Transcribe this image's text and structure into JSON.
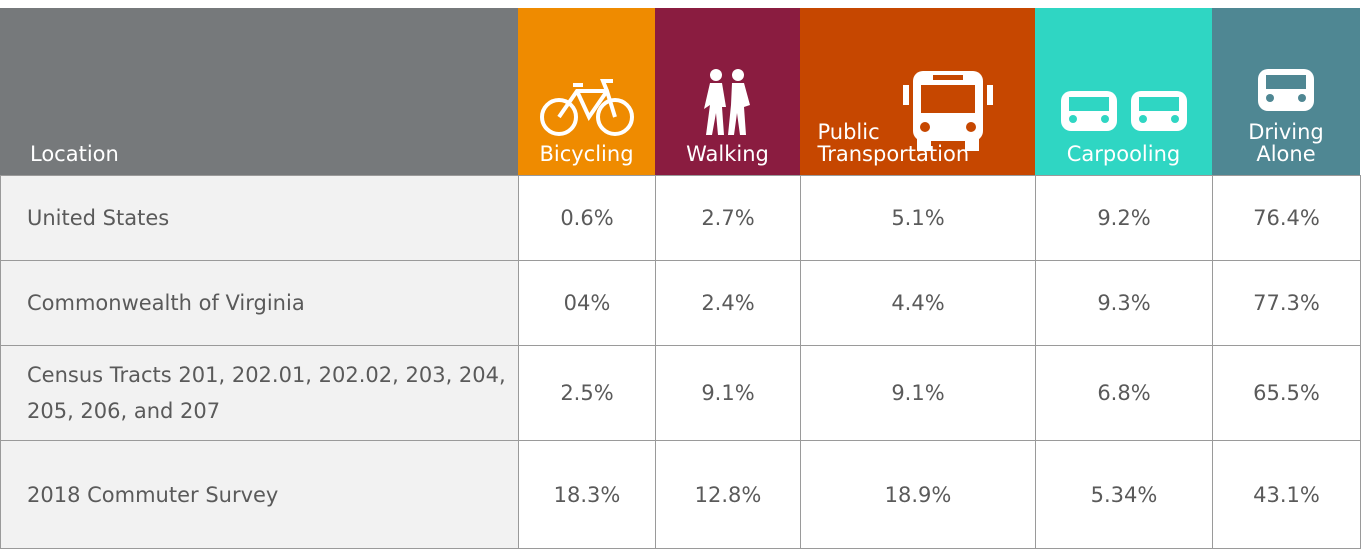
{
  "table": {
    "columns": [
      "Location",
      "Bicycling",
      "Walking",
      "Public Transportation",
      "Carpooling",
      "Driving Alone"
    ],
    "rows": [
      [
        "United States",
        "0.6%",
        "2.7%",
        "5.1%",
        "9.2%",
        "76.4%"
      ],
      [
        "Commonwealth of Virginia",
        "04%",
        "2.4%",
        "4.4%",
        "9.3%",
        "77.3%"
      ],
      [
        "Census Tracts 201, 202.01, 202.02, 203, 204, 205, 206, and 207",
        "2.5%",
        "9.1%",
        "9.1%",
        "6.8%",
        "65.5%"
      ],
      [
        "2018 Commuter Survey",
        "18.3%",
        "12.8%",
        "18.9%",
        "5.34%",
        "43.1%"
      ]
    ]
  }
}
